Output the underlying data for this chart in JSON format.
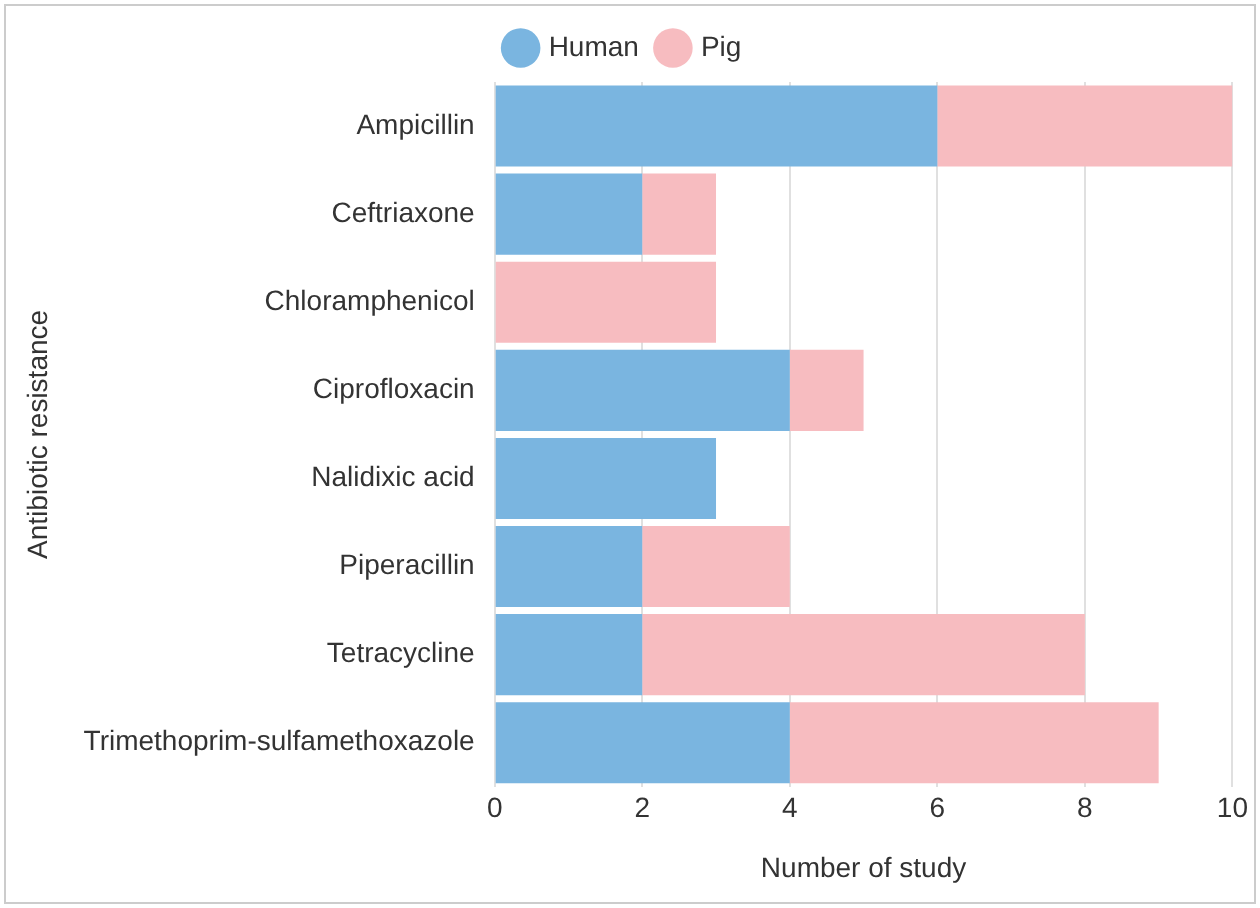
{
  "chart_data": {
    "type": "bar",
    "orientation": "horizontal",
    "stacked": true,
    "xlabel": "Number of study",
    "ylabel": "Antibiotic resistance",
    "categories": [
      "Ampicillin",
      "Ceftriaxone",
      "Chloramphenicol",
      "Ciprofloxacin",
      "Nalidixic acid",
      "Piperacillin",
      "Tetracycline",
      "Trimethoprim-sulfamethoxazole"
    ],
    "series": [
      {
        "name": "Human",
        "color": "#7ab5e0",
        "values": [
          6,
          2,
          0,
          4,
          3,
          2,
          2,
          4
        ]
      },
      {
        "name": "Pig",
        "color": "#f7bcc0",
        "values": [
          4,
          1,
          3,
          1,
          0,
          2,
          6,
          5
        ]
      }
    ],
    "xlim": [
      0,
      10
    ],
    "xticks": [
      0,
      2,
      4,
      6,
      8,
      10
    ],
    "grid": "x",
    "legend": "top"
  }
}
